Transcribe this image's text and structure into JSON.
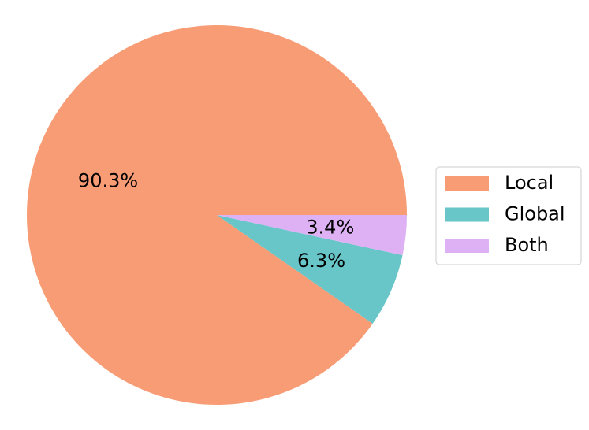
{
  "chart_data": {
    "type": "pie",
    "categories": [
      "Local",
      "Global",
      "Both"
    ],
    "values": [
      90.3,
      6.3,
      3.4
    ],
    "value_labels": [
      "90.3%",
      "6.3%",
      "3.4%"
    ],
    "colors": [
      "#f79c74",
      "#68c6c9",
      "#ddb1f3"
    ],
    "legend": "right"
  }
}
